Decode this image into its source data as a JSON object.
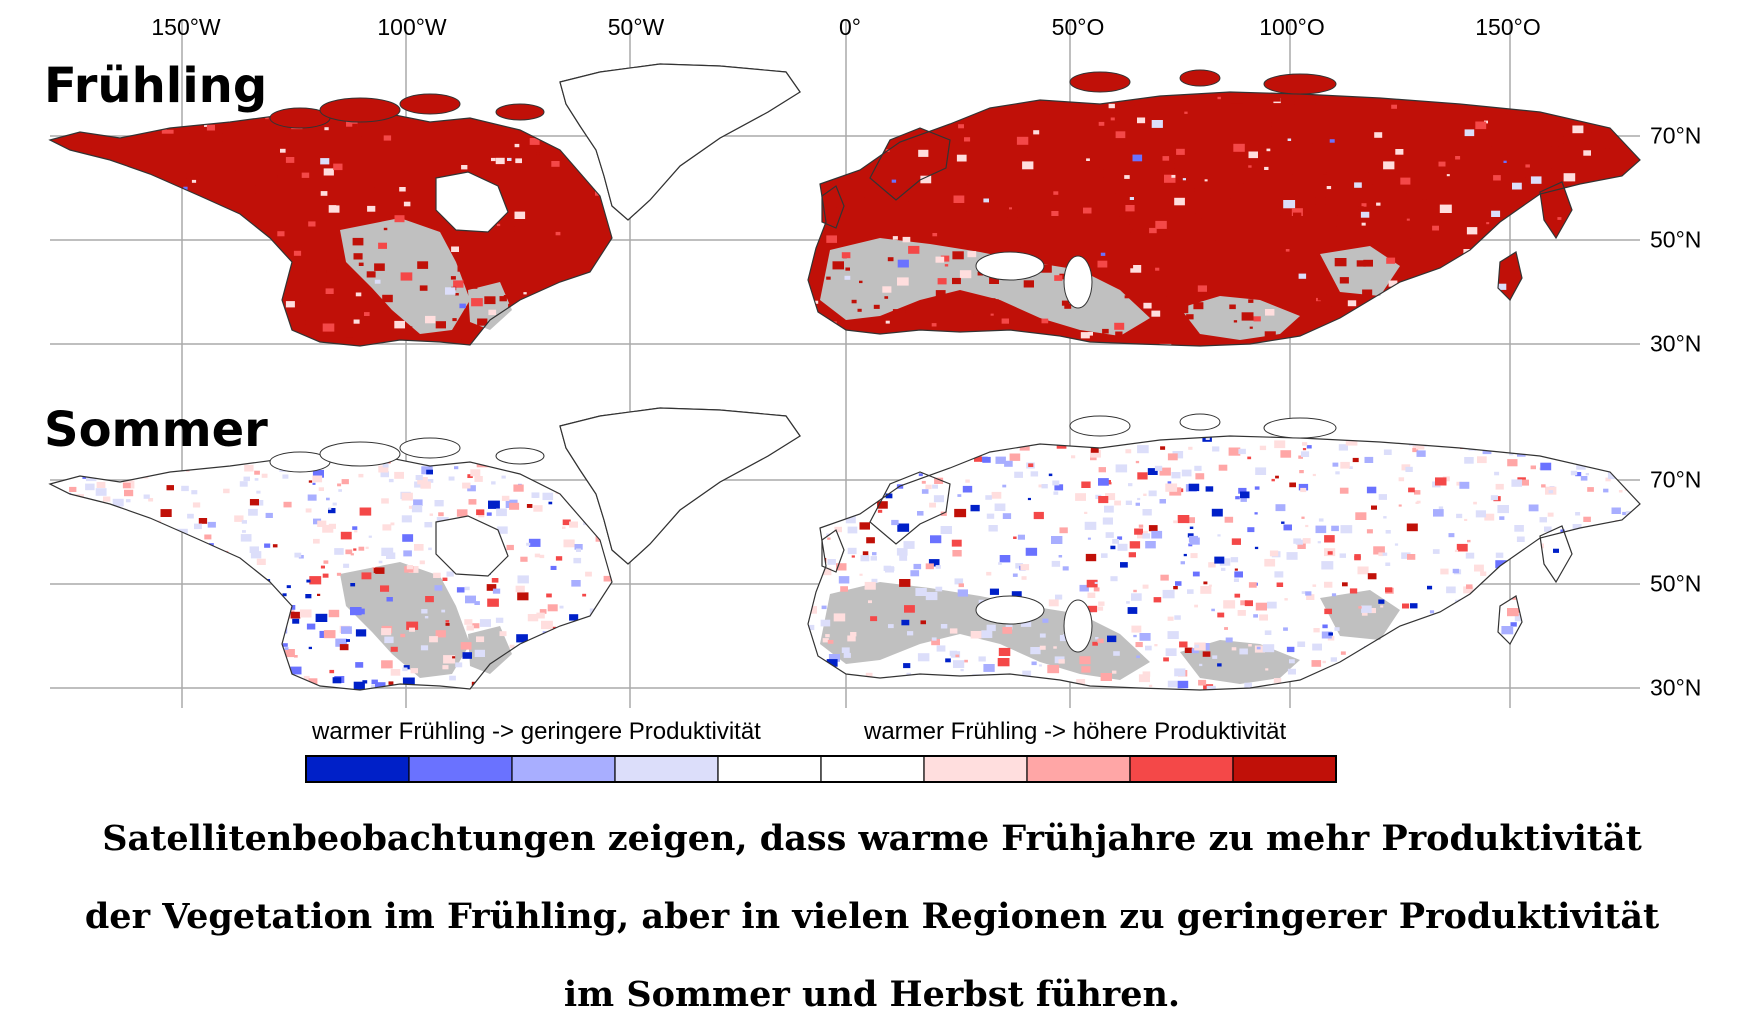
{
  "map": {
    "longitude_labels": [
      "150°W",
      "100°W",
      "50°W",
      "0°",
      "50°O",
      "100°O",
      "150°O"
    ],
    "latitude_labels": [
      "70°N",
      "50°N",
      "30°N"
    ],
    "panels": [
      {
        "title": "Frühling"
      },
      {
        "title": "Sommer"
      }
    ],
    "colors": {
      "no_data": "#c0c0c0",
      "coast": "#333333",
      "grid": "#aaaaaa"
    }
  },
  "legend": {
    "left_label": "warmer Frühling -> geringere Produktivität",
    "right_label": "warmer Frühling -> höhere Produktivität",
    "colors": [
      "#0020c8",
      "#6a72ff",
      "#a8aeff",
      "#dcdefa",
      "#ffffff",
      "#ffffff",
      "#ffdede",
      "#ffa6a6",
      "#f44848",
      "#c01008"
    ]
  },
  "caption": {
    "lines": [
      "Satellitenbeobachtungen zeigen, dass warme Frühjahre zu mehr Produktivität",
      "der Vegetation im Frühling, aber in vielen Regionen zu geringerer Produktivität",
      "im Sommer und Herbst führen."
    ]
  }
}
